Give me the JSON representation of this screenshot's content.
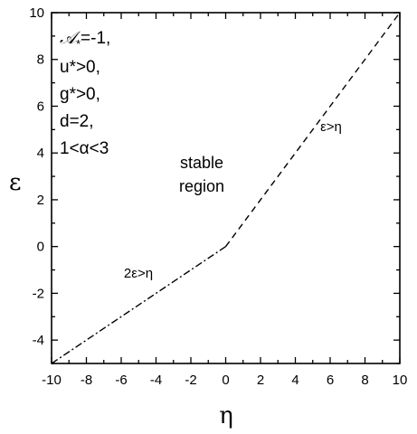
{
  "chart_data": {
    "type": "line",
    "title": "",
    "xlabel": "η",
    "ylabel": "ε",
    "xlim": [
      -10,
      10
    ],
    "ylim": [
      -5,
      10
    ],
    "grid": false,
    "x_ticks": [
      "-10",
      "-8",
      "-6",
      "-4",
      "-2",
      "0",
      "2",
      "4",
      "6",
      "8",
      "10"
    ],
    "y_ticks": [
      "-4",
      "-2",
      "0",
      "2",
      "4",
      "6",
      "8",
      "10"
    ],
    "series": [
      {
        "line_style": "dash-dot",
        "color": "#000000",
        "points": [
          {
            "x": -10,
            "y": -5
          },
          {
            "x": 0,
            "y": 0
          }
        ]
      },
      {
        "line_style": "dashed",
        "color": "#000000",
        "points": [
          {
            "x": 0,
            "y": 0
          },
          {
            "x": 10,
            "y": 10
          }
        ]
      }
    ],
    "annotations": {
      "dashdot_label": "2ε>η",
      "dashed_label": "ε>η",
      "region_line1": "stable",
      "region_line2": "region",
      "params": [
        "=-1,",
        "u*>0,",
        "g*>0,",
        "d=2,",
        "1<α<3"
      ],
      "param_symbol": "𝒜",
      "param_subscript": "*"
    }
  }
}
